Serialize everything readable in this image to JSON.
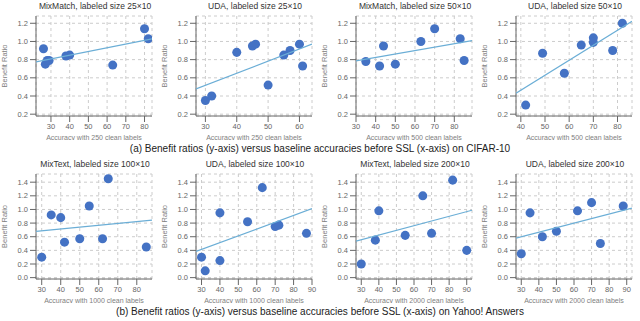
{
  "chart_data": [
    {
      "type": "scatter",
      "title": "MixMatch, labeled size 25×10",
      "xlabel": "Accuracy with 250 clean labels",
      "ylabel": "Benefit Ratio",
      "xlim": [
        22,
        84
      ],
      "ylim": [
        0.18,
        1.28
      ],
      "xticks": [
        30,
        40,
        50,
        60,
        70,
        80
      ],
      "yticks": [
        0.2,
        0.4,
        0.6,
        0.8,
        {
          "value": 1.0,
          "label": "1.0"
        },
        1.2
      ],
      "grid": true,
      "series": [
        {
          "type": "scatter",
          "color": "#4472c4",
          "x": [
            26,
            27,
            28,
            29,
            38,
            40,
            63,
            80,
            82
          ],
          "values": [
            0.92,
            0.75,
            0.79,
            0.79,
            0.84,
            0.85,
            0.74,
            1.14,
            1.03
          ]
        },
        {
          "type": "line",
          "color": "#6baed6",
          "x": [
            22,
            84
          ],
          "values": [
            0.7749,
            1.0275
          ]
        }
      ]
    },
    {
      "type": "scatter",
      "title": "UDA, labeled size 25×10",
      "xlabel": "Accuracy with 250 clean labels",
      "ylabel": "Benefit Ratio",
      "xlim": [
        27,
        64
      ],
      "ylim": [
        0.18,
        1.28
      ],
      "xticks": [
        30,
        40,
        50,
        60
      ],
      "yticks": [
        0.2,
        0.4,
        0.6,
        0.8,
        {
          "value": 1.0,
          "label": "1.0"
        },
        1.2
      ],
      "grid": true,
      "series": [
        {
          "type": "scatter",
          "color": "#4472c4",
          "x": [
            30,
            32,
            40,
            45,
            46,
            50,
            55,
            57,
            60,
            61
          ],
          "values": [
            0.35,
            0.4,
            0.88,
            0.95,
            0.97,
            0.52,
            0.85,
            0.9,
            0.97,
            0.73
          ]
        },
        {
          "type": "line",
          "color": "#6baed6",
          "x": [
            27,
            64
          ],
          "values": [
            0.4773,
            0.9707
          ]
        }
      ]
    },
    {
      "type": "scatter",
      "title": "MixMatch, labeled size 50×10",
      "xlabel": "Accuracy with 500 clean labels",
      "ylabel": "Benefit Ratio",
      "xlim": [
        30,
        89
      ],
      "ylim": [
        0.18,
        1.28
      ],
      "xticks": [
        30,
        40,
        50,
        60,
        70,
        80
      ],
      "yticks": [
        0.2,
        0.4,
        0.6,
        0.8,
        {
          "value": 1.0,
          "label": "1.0"
        },
        1.2
      ],
      "grid": true,
      "series": [
        {
          "type": "scatter",
          "color": "#4472c4",
          "x": [
            35,
            42,
            44,
            50,
            63,
            70,
            83,
            85
          ],
          "values": [
            0.78,
            0.73,
            0.95,
            0.75,
            1.0,
            1.14,
            1.03,
            0.79
          ]
        },
        {
          "type": "line",
          "color": "#6baed6",
          "x": [
            30,
            89
          ],
          "values": [
            0.7867,
            1.0096
          ]
        }
      ]
    },
    {
      "type": "scatter",
      "title": "UDA, labeled size 50×10",
      "xlabel": "Accuracy with 500 clean labels",
      "ylabel": "Benefit Ratio",
      "xlim": [
        38,
        86
      ],
      "ylim": [
        0.18,
        1.28
      ],
      "xticks": [
        40,
        50,
        60,
        70,
        80
      ],
      "yticks": [
        0.2,
        0.4,
        0.6,
        0.8,
        {
          "value": 1.0,
          "label": "1.0"
        },
        1.2
      ],
      "grid": true,
      "series": [
        {
          "type": "scatter",
          "color": "#4472c4",
          "x": [
            42,
            49,
            58,
            65,
            70,
            70,
            78,
            82
          ],
          "values": [
            0.3,
            0.87,
            0.65,
            0.96,
            1.04,
            0.99,
            0.9,
            1.2
          ]
        },
        {
          "type": "line",
          "color": "#6baed6",
          "x": [
            38,
            86
          ],
          "values": [
            0.4307,
            1.2225
          ]
        }
      ]
    },
    {
      "type": "scatter",
      "title": "MixText, labeled size 100×10",
      "xlabel": "Accuracy with 1000 clean labels",
      "ylabel": "Benefit Ratio",
      "xlim": [
        27,
        88
      ],
      "ylim": [
        -0.02,
        1.52
      ],
      "xticks": [
        30,
        40,
        50,
        60,
        70,
        80
      ],
      "yticks": [
        {
          "value": 0.0,
          "label": "0.0"
        },
        0.2,
        0.4,
        0.6,
        0.8,
        {
          "value": 1.0,
          "label": "1.0"
        },
        1.2,
        1.4
      ],
      "grid": true,
      "series": [
        {
          "type": "scatter",
          "color": "#4472c4",
          "x": [
            30,
            35,
            40,
            42,
            50,
            55,
            62,
            65,
            85
          ],
          "values": [
            0.3,
            0.92,
            0.88,
            0.52,
            0.57,
            1.05,
            0.57,
            1.45,
            0.45
          ]
        },
        {
          "type": "line",
          "color": "#6baed6",
          "x": [
            27,
            88
          ],
          "values": [
            0.6798,
            0.8432
          ]
        }
      ]
    },
    {
      "type": "scatter",
      "title": "UDA, labeled size 100×10",
      "xlabel": "Accuracy with 1000 clean labels",
      "ylabel": "Benefit Ratio",
      "xlim": [
        27,
        90
      ],
      "ylim": [
        -0.02,
        1.52
      ],
      "xticks": [
        30,
        40,
        50,
        60,
        70,
        80,
        90
      ],
      "yticks": [
        {
          "value": 0.0,
          "label": "0.0"
        },
        0.2,
        0.4,
        0.6,
        0.8,
        {
          "value": 1.0,
          "label": "1.0"
        },
        1.2,
        1.4
      ],
      "grid": true,
      "series": [
        {
          "type": "scatter",
          "color": "#4472c4",
          "x": [
            30,
            32,
            40,
            40,
            55,
            63,
            70,
            72,
            87
          ],
          "values": [
            0.3,
            0.1,
            0.95,
            0.25,
            0.82,
            1.32,
            0.75,
            0.77,
            0.65
          ]
        },
        {
          "type": "line",
          "color": "#6baed6",
          "x": [
            27,
            90
          ],
          "values": [
            0.3849,
            1.0113
          ]
        }
      ]
    },
    {
      "type": "scatter",
      "title": "MixText, labeled size 200×10",
      "xlabel": "Accuracy with 2000 clean labels",
      "ylabel": "Benefit Ratio",
      "xlim": [
        27,
        93
      ],
      "ylim": [
        -0.02,
        1.52
      ],
      "xticks": [
        30,
        40,
        50,
        60,
        70,
        80,
        90
      ],
      "yticks": [
        {
          "value": 0.0,
          "label": "0.0"
        },
        0.2,
        0.4,
        0.6,
        0.8,
        {
          "value": 1.0,
          "label": "1.0"
        },
        1.2,
        1.4
      ],
      "grid": true,
      "series": [
        {
          "type": "scatter",
          "color": "#4472c4",
          "x": [
            30,
            38,
            40,
            55,
            65,
            70,
            82,
            90
          ],
          "values": [
            0.2,
            0.55,
            0.98,
            0.62,
            1.2,
            0.65,
            1.43,
            0.4
          ]
        },
        {
          "type": "line",
          "color": "#6baed6",
          "x": [
            27,
            93
          ],
          "values": [
            0.5357,
            0.9889
          ]
        }
      ]
    },
    {
      "type": "scatter",
      "title": "UDA, labeled size 200×10",
      "xlabel": "Accuracy with 2000 clean labels",
      "ylabel": "Benefit Ratio",
      "xlim": [
        27,
        93
      ],
      "ylim": [
        -0.02,
        1.52
      ],
      "xticks": [
        30,
        40,
        50,
        60,
        70,
        80,
        90
      ],
      "yticks": [
        {
          "value": 0.0,
          "label": "0.0"
        },
        0.2,
        0.4,
        0.6,
        0.8,
        {
          "value": 1.0,
          "label": "1.0"
        },
        1.2,
        1.4
      ],
      "grid": true,
      "series": [
        {
          "type": "scatter",
          "color": "#4472c4",
          "x": [
            30,
            35,
            42,
            50,
            62,
            70,
            75,
            88
          ],
          "values": [
            0.35,
            0.95,
            0.6,
            0.68,
            0.98,
            1.1,
            0.5,
            1.05
          ]
        },
        {
          "type": "line",
          "color": "#6baed6",
          "x": [
            27,
            93
          ],
          "values": [
            0.5797,
            1.0194
          ]
        }
      ]
    }
  ],
  "annotations": [
    "(a) Benefit ratios (y-axis) versus baseline accuracies before SSL (x-axis) on CIFAR-10",
    "(b) Benefit ratios (y-axis) versus baseline accuracies before SSL (x-axis) on Yahoo! Answers"
  ]
}
